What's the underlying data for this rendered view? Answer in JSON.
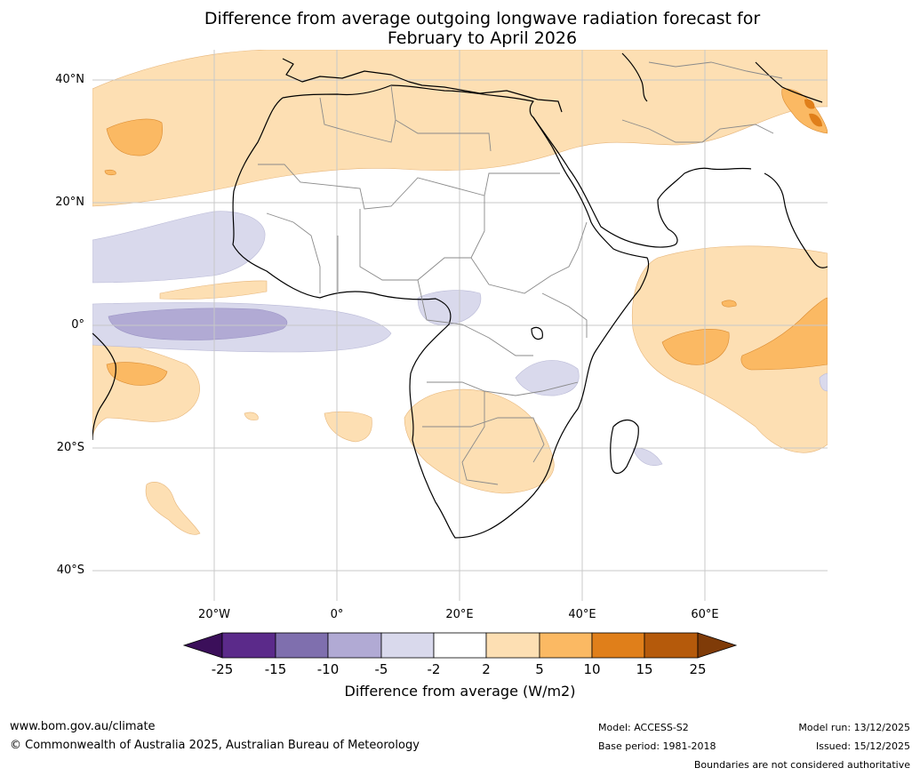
{
  "title": {
    "line1": "Difference from average outgoing longwave radiation forecast for",
    "line2": "February to April 2026"
  },
  "axes": {
    "lat_labels": [
      "40°N",
      "20°N",
      "0°",
      "20°S",
      "40°S"
    ],
    "lon_labels": [
      "20°W",
      "0°",
      "20°E",
      "40°E",
      "60°E"
    ]
  },
  "legend": {
    "ticks": [
      "-25",
      "-15",
      "-10",
      "-5",
      "-2",
      "2",
      "5",
      "10",
      "15",
      "25"
    ],
    "colors": [
      "#3b0f5a",
      "#5b2a8a",
      "#7f6fae",
      "#b1aad4",
      "#d9d9ec",
      "#ffffff",
      "#fddfb3",
      "#fbb963",
      "#e07f1a",
      "#b55a0b",
      "#7f3b08"
    ],
    "label": "Difference from average (W/m2)"
  },
  "footer": {
    "website": "www.bom.gov.au/climate",
    "copyright": "© Commonwealth of Australia 2025, Australian Bureau of Meteorology",
    "model": "Model: ACCESS-S2",
    "base_period": "Base period: 1981-2018",
    "model_run": "Model run: 13/12/2025",
    "issued": "Issued: 15/12/2025",
    "boundaries": "Boundaries are not considered authoritative"
  }
}
